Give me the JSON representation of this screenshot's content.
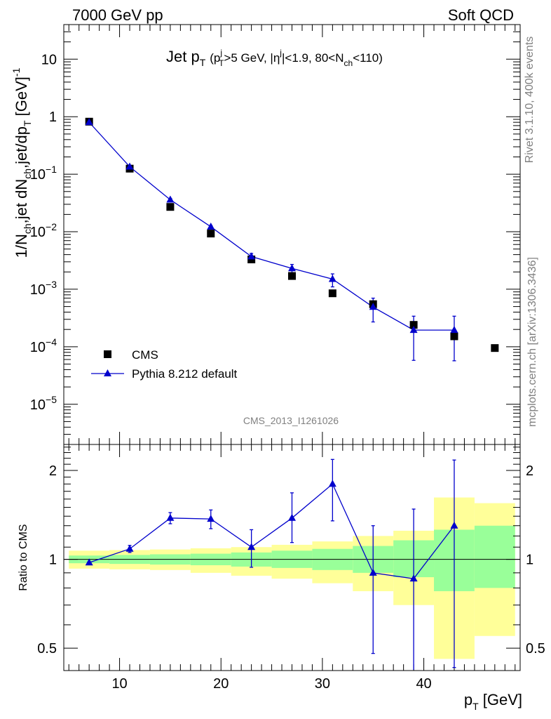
{
  "header": {
    "left": "7000 GeV pp",
    "right": "Soft QCD"
  },
  "side_labels": {
    "rivet": "Rivet 3.1.10,  400k events",
    "mcplots": "mcplots.cern.ch [arXiv:1306.3436]"
  },
  "watermark": "CMS_2013_I1261026",
  "title": {
    "main": "Jet p",
    "main_sub": "T",
    "p1": "(p",
    "p1_sup": "j",
    "p1_sub": "T",
    "p2": ">5 GeV, |η",
    "p2_sup": "j",
    "p3": "|<1.9, 80<N",
    "p3_sub": "ch",
    "p4": "<110)"
  },
  "ylabel_main": {
    "a": "1/N",
    "a_sub": "ch",
    "b": ",jet dN",
    "b_sub": "ch",
    "c": ",jet/dp",
    "c_sub": "T",
    "d": " [GeV]",
    "d_sup": "-1"
  },
  "ylabel_ratio": "Ratio to CMS",
  "xlabel": {
    "a": "p",
    "a_sub": "T",
    "b": " [GeV]"
  },
  "legend": {
    "data_label": "CMS",
    "mc_label": "Pythia 8.212 default"
  },
  "colors": {
    "mc": "#0000cc",
    "data": "#000000",
    "band_inner": "#99ff99",
    "band_outer": "#ffff99",
    "watermark": "#808080"
  },
  "chart_data": {
    "type": "scatter",
    "x_axis": {
      "range": [
        4.5,
        49.5
      ],
      "ticks": [
        10,
        20,
        30,
        40
      ],
      "tick_labels": [
        "10",
        "20",
        "30",
        "40"
      ]
    },
    "main_panel": {
      "yscale": "log",
      "ylim": [
        2e-06,
        40
      ],
      "ytick_labels": [
        {
          "v": 10,
          "base": "10",
          "exp": ""
        },
        {
          "v": 1,
          "base": "1",
          "exp": ""
        },
        {
          "v": 0.1,
          "base": "10",
          "exp": "−1"
        },
        {
          "v": 0.01,
          "base": "10",
          "exp": "−2"
        },
        {
          "v": 0.001,
          "base": "10",
          "exp": "−3"
        },
        {
          "v": 0.0001,
          "base": "10",
          "exp": "−4"
        },
        {
          "v": 1e-05,
          "base": "10",
          "exp": "−5"
        }
      ],
      "data_series": {
        "name": "CMS",
        "x": [
          7,
          11,
          15,
          19,
          23,
          27,
          31,
          35,
          39,
          43,
          47
        ],
        "y": [
          0.82,
          0.125,
          0.027,
          0.0093,
          0.0033,
          0.0017,
          0.00085,
          0.00055,
          0.00024,
          0.000152,
          9.5e-05
        ]
      },
      "mc_series": {
        "name": "Pythia 8.212 default",
        "x": [
          7,
          11,
          15,
          19,
          23,
          27,
          31,
          35,
          39,
          43
        ],
        "y": [
          0.8,
          0.135,
          0.036,
          0.0122,
          0.0037,
          0.0023,
          0.0015,
          0.00049,
          0.000195,
          0.000195
        ],
        "err_lo": [
          0,
          0.005,
          0.002,
          0.0006,
          0.0005,
          0.0004,
          0.0004,
          0.00022,
          0.000137,
          0.000138
        ],
        "err_hi": [
          0,
          0.005,
          0.002,
          0.0006,
          0.0005,
          0.0004,
          0.00035,
          0.00021,
          0.000145,
          0.000145
        ]
      }
    },
    "ratio_panel": {
      "ylabel": "Ratio to CMS",
      "yscale": "log",
      "ylim": [
        0.42,
        2.45
      ],
      "ytick_labels": [
        {
          "v": 0.5,
          "label": "0.5"
        },
        {
          "v": 1,
          "label": "1"
        },
        {
          "v": 2,
          "label": "2"
        }
      ],
      "bins": [
        {
          "lo": 5,
          "hi": 9,
          "g": [
            0.97,
            1.03
          ],
          "y": [
            0.93,
            1.07
          ]
        },
        {
          "lo": 9,
          "hi": 13,
          "g": [
            0.965,
            1.035
          ],
          "y": [
            0.925,
            1.075
          ]
        },
        {
          "lo": 13,
          "hi": 17,
          "g": [
            0.96,
            1.04
          ],
          "y": [
            0.92,
            1.08
          ]
        },
        {
          "lo": 17,
          "hi": 21,
          "g": [
            0.955,
            1.045
          ],
          "y": [
            0.9,
            1.09
          ]
        },
        {
          "lo": 21,
          "hi": 25,
          "g": [
            0.945,
            1.055
          ],
          "y": [
            0.88,
            1.1
          ]
        },
        {
          "lo": 25,
          "hi": 29,
          "g": [
            0.935,
            1.07
          ],
          "y": [
            0.86,
            1.12
          ]
        },
        {
          "lo": 29,
          "hi": 33,
          "g": [
            0.92,
            1.085
          ],
          "y": [
            0.83,
            1.15
          ]
        },
        {
          "lo": 33,
          "hi": 37,
          "g": [
            0.9,
            1.11
          ],
          "y": [
            0.78,
            1.2
          ]
        },
        {
          "lo": 37,
          "hi": 41,
          "g": [
            0.87,
            1.16
          ],
          "y": [
            0.7,
            1.25
          ]
        },
        {
          "lo": 41,
          "hi": 45,
          "g": [
            0.78,
            1.26
          ],
          "y": [
            0.46,
            1.62
          ]
        },
        {
          "lo": 45,
          "hi": 49,
          "g": [
            0.8,
            1.3
          ],
          "y": [
            0.55,
            1.55
          ]
        }
      ],
      "mc_ratio": {
        "x": [
          7,
          11,
          15,
          19,
          23,
          27,
          31,
          35,
          39,
          43
        ],
        "y": [
          0.975,
          1.085,
          1.38,
          1.37,
          1.1,
          1.38,
          1.8,
          0.9,
          0.86,
          1.3
        ],
        "err_lo": [
          0,
          0.03,
          0.06,
          0.1,
          0.16,
          0.24,
          0.45,
          0.42,
          0.48,
          0.87
        ],
        "err_hi": [
          0,
          0.03,
          0.06,
          0.1,
          0.16,
          0.3,
          0.38,
          0.4,
          0.62,
          0.87
        ]
      }
    }
  }
}
